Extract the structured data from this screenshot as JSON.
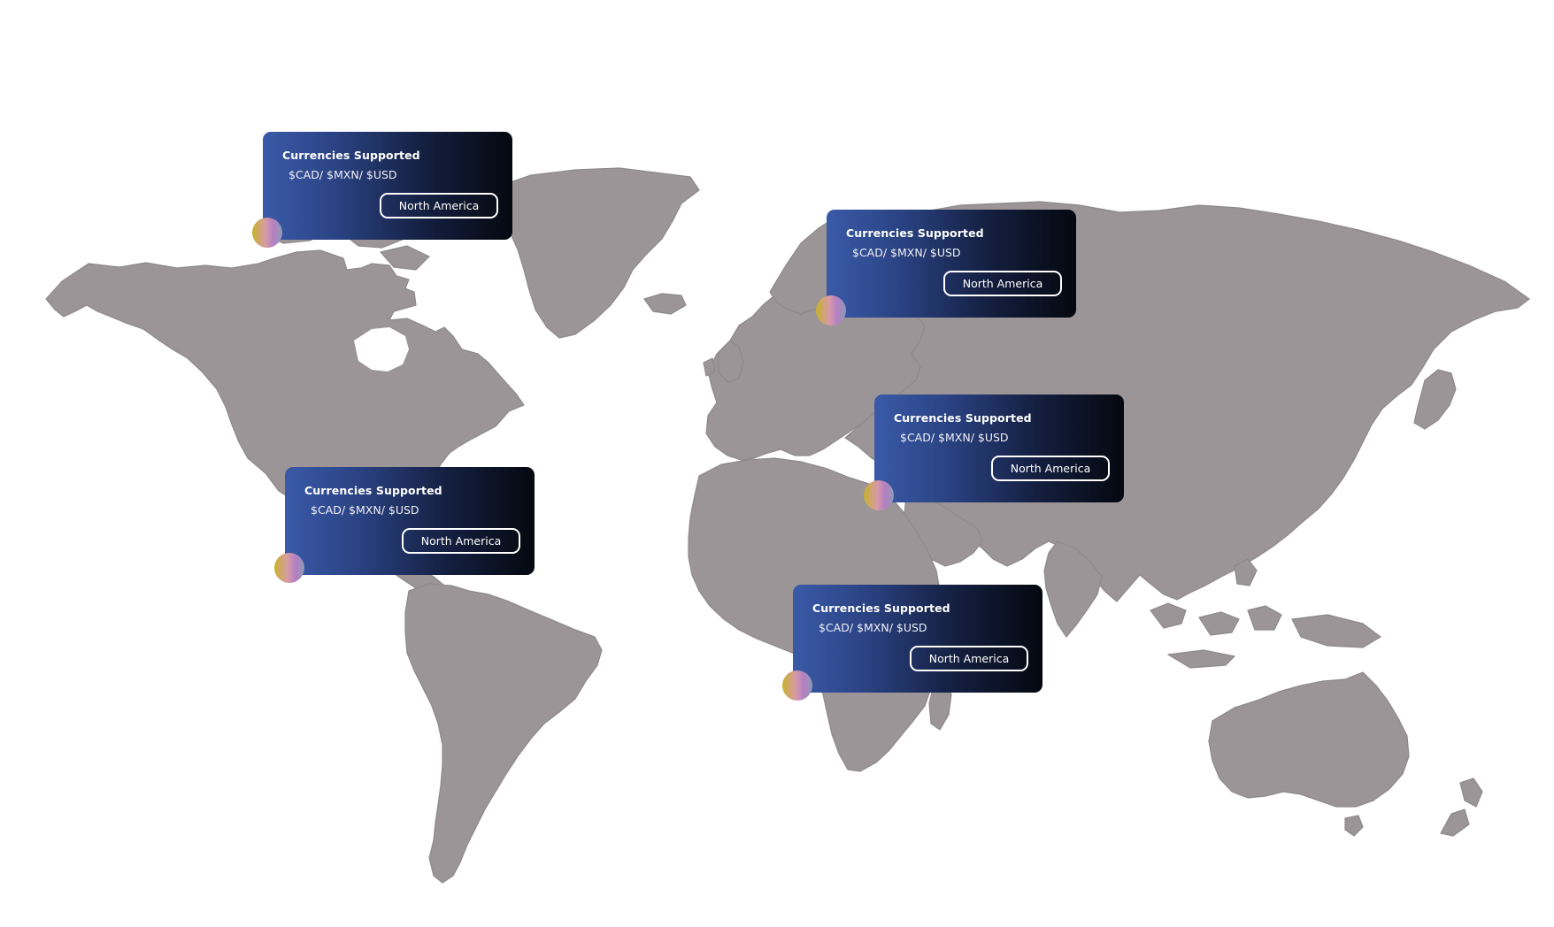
{
  "map": {
    "colors": {
      "land": "#9b9598",
      "background": "#ffffff",
      "card_gradient_start": "#3a5aa8",
      "card_gradient_end": "#05080f",
      "marker_gold": "#c7b22a",
      "marker_pink": "#d79aa8",
      "marker_violet": "#b57fc2"
    }
  },
  "cards": [
    {
      "title": "Currencies Supported",
      "currencies": "$CAD/ $MXN/ $USD",
      "button_label": "North America",
      "marker_icon": "location-dot-icon"
    },
    {
      "title": "Currencies Supported",
      "currencies": "$CAD/ $MXN/ $USD",
      "button_label": "North America",
      "marker_icon": "location-dot-icon"
    },
    {
      "title": "Currencies Supported",
      "currencies": "$CAD/ $MXN/ $USD",
      "button_label": "North America",
      "marker_icon": "location-dot-icon"
    },
    {
      "title": "Currencies Supported",
      "currencies": "$CAD/ $MXN/ $USD",
      "button_label": "North America",
      "marker_icon": "location-dot-icon"
    },
    {
      "title": "Currencies Supported",
      "currencies": "$CAD/ $MXN/ $USD",
      "button_label": "North America",
      "marker_icon": "location-dot-icon"
    }
  ]
}
